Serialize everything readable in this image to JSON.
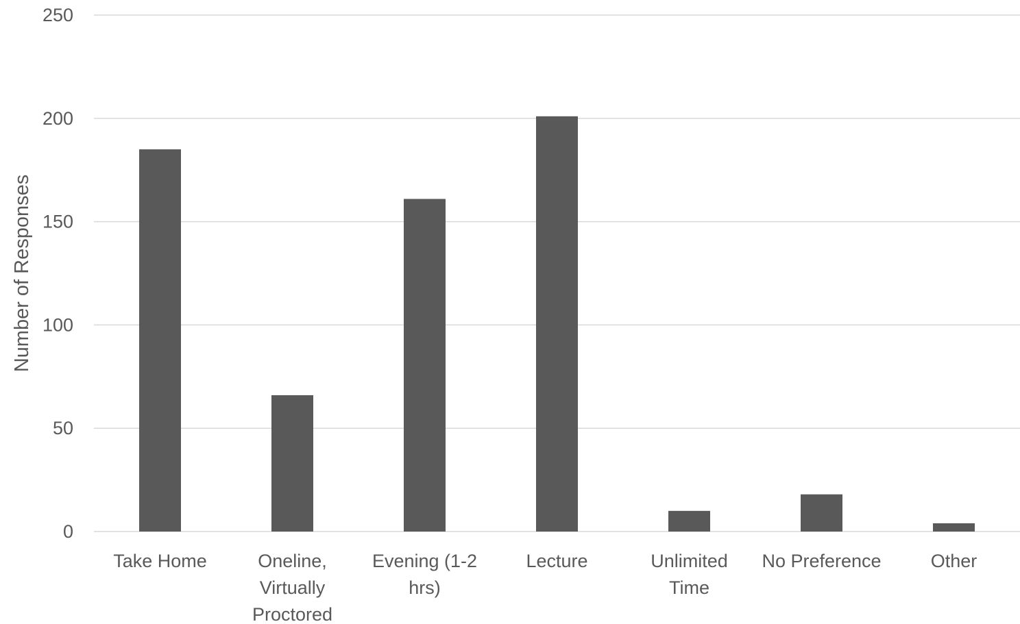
{
  "chart_data": {
    "type": "bar",
    "title": "",
    "xlabel": "",
    "ylabel": "Number of Responses",
    "ylim": [
      0,
      250
    ],
    "yticks": [
      0,
      50,
      100,
      150,
      200,
      250
    ],
    "grid": true,
    "categories": [
      "Take Home",
      "Oneline, Virtually Proctored",
      "Evening (1-2 hrs)",
      "Lecture",
      "Unlimited Time",
      "No Preference",
      "Other"
    ],
    "category_lines": [
      [
        "Take Home"
      ],
      [
        "Oneline,",
        "Virtually",
        "Proctored"
      ],
      [
        "Evening (1-2",
        "hrs)"
      ],
      [
        "Lecture"
      ],
      [
        "Unlimited",
        "Time"
      ],
      [
        "No Preference"
      ],
      [
        "Other"
      ]
    ],
    "values": [
      185,
      66,
      161,
      201,
      10,
      18,
      4
    ],
    "bar_color": "#595959"
  }
}
